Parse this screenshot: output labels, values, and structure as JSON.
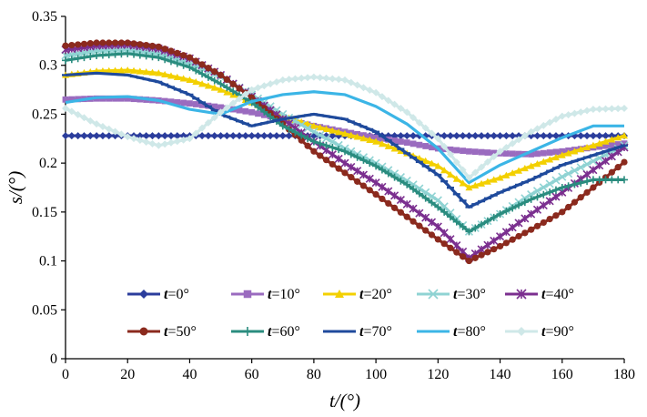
{
  "chart_data": {
    "type": "line",
    "xlabel": "t/(°)",
    "ylabel": "s/(°)",
    "xlim": [
      0,
      180
    ],
    "ylim": [
      0,
      0.35
    ],
    "xticks": [
      "0",
      "20",
      "40",
      "60",
      "80",
      "100",
      "120",
      "140",
      "160",
      "180"
    ],
    "yticks": [
      "0",
      "0.05",
      "0.1",
      "0.15",
      "0.2",
      "0.25",
      "0.3",
      "0.35"
    ],
    "grid": false,
    "legend_position": "bottom-center",
    "x": [
      0,
      10,
      20,
      30,
      40,
      50,
      60,
      70,
      80,
      90,
      100,
      110,
      120,
      130,
      140,
      150,
      160,
      170,
      180
    ],
    "series": [
      {
        "name": "t=0°",
        "label_var": "t",
        "label_val": "=0°",
        "color": "#2b3d9c",
        "marker": "diamond",
        "values": [
          0.228,
          0.228,
          0.228,
          0.228,
          0.228,
          0.228,
          0.228,
          0.228,
          0.228,
          0.228,
          0.228,
          0.228,
          0.228,
          0.228,
          0.228,
          0.228,
          0.228,
          0.228,
          0.228
        ]
      },
      {
        "name": "t=10°",
        "label_var": "t",
        "label_val": "=10°",
        "color": "#9a6bbf",
        "marker": "square",
        "values": [
          0.265,
          0.266,
          0.266,
          0.264,
          0.261,
          0.257,
          0.252,
          0.245,
          0.238,
          0.232,
          0.226,
          0.221,
          0.215,
          0.212,
          0.21,
          0.209,
          0.212,
          0.216,
          0.22
        ]
      },
      {
        "name": "t=20°",
        "label_var": "t",
        "label_val": "=20°",
        "color": "#f3d000",
        "marker": "triangle",
        "values": [
          0.29,
          0.294,
          0.295,
          0.292,
          0.285,
          0.275,
          0.262,
          0.248,
          0.238,
          0.23,
          0.222,
          0.21,
          0.197,
          0.175,
          0.185,
          0.197,
          0.208,
          0.218,
          0.228
        ]
      },
      {
        "name": "t=30°",
        "label_var": "t",
        "label_val": "=30°",
        "color": "#8fd3d3",
        "marker": "x",
        "values": [
          0.31,
          0.315,
          0.316,
          0.312,
          0.302,
          0.288,
          0.27,
          0.25,
          0.232,
          0.215,
          0.2,
          0.182,
          0.162,
          0.13,
          0.148,
          0.168,
          0.186,
          0.202,
          0.218
        ]
      },
      {
        "name": "t=40°",
        "label_var": "t",
        "label_val": "=40°",
        "color": "#7b2f8f",
        "marker": "asterisk",
        "values": [
          0.316,
          0.32,
          0.321,
          0.317,
          0.307,
          0.29,
          0.268,
          0.245,
          0.222,
          0.2,
          0.18,
          0.158,
          0.135,
          0.103,
          0.125,
          0.148,
          0.17,
          0.193,
          0.216
        ]
      },
      {
        "name": "t=50°",
        "label_var": "t",
        "label_val": "=50°",
        "color": "#8b2a1e",
        "marker": "circle",
        "values": [
          0.32,
          0.323,
          0.323,
          0.319,
          0.308,
          0.29,
          0.267,
          0.24,
          0.212,
          0.19,
          0.168,
          0.145,
          0.122,
          0.1,
          0.115,
          0.132,
          0.15,
          0.175,
          0.201
        ]
      },
      {
        "name": "t=60°",
        "label_var": "t",
        "label_val": "=60°",
        "color": "#2a8c7f",
        "marker": "plus",
        "values": [
          0.305,
          0.31,
          0.312,
          0.308,
          0.298,
          0.281,
          0.262,
          0.238,
          0.222,
          0.212,
          0.197,
          0.178,
          0.155,
          0.13,
          0.148,
          0.163,
          0.175,
          0.183,
          0.183
        ]
      },
      {
        "name": "t=70°",
        "label_var": "t",
        "label_val": "=70°",
        "color": "#1f4a9c",
        "marker": "dash",
        "values": [
          0.29,
          0.292,
          0.29,
          0.283,
          0.27,
          0.25,
          0.238,
          0.245,
          0.25,
          0.245,
          0.232,
          0.21,
          0.188,
          0.155,
          0.17,
          0.183,
          0.198,
          0.208,
          0.218
        ]
      },
      {
        "name": "t=80°",
        "label_var": "t",
        "label_val": "=80°",
        "color": "#3bb5e6",
        "marker": "line",
        "values": [
          0.262,
          0.267,
          0.268,
          0.264,
          0.255,
          0.25,
          0.263,
          0.27,
          0.273,
          0.27,
          0.258,
          0.24,
          0.215,
          0.18,
          0.198,
          0.212,
          0.226,
          0.238,
          0.238
        ]
      },
      {
        "name": "t=90°",
        "label_var": "t",
        "label_val": "=90°",
        "color": "#cfe8e8",
        "marker": "diamond",
        "values": [
          0.256,
          0.24,
          0.227,
          0.218,
          0.225,
          0.252,
          0.275,
          0.285,
          0.288,
          0.285,
          0.272,
          0.252,
          0.225,
          0.185,
          0.212,
          0.232,
          0.248,
          0.255,
          0.256
        ]
      }
    ]
  }
}
